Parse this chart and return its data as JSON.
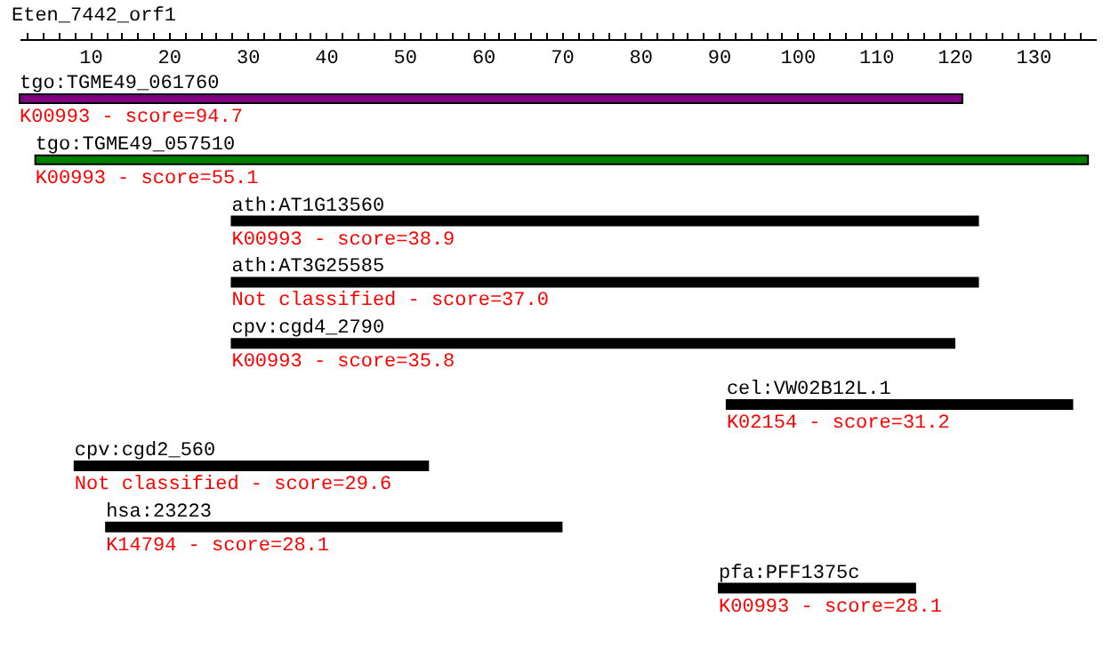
{
  "chart_data": {
    "type": "bar",
    "orientation": "horizontal",
    "title": "Eten_7442_orf1",
    "categories": [
      "tgo:TGME49_061760",
      "tgo:TGME49_057510",
      "ath:AT1G13560",
      "ath:AT3G25585",
      "cpv:cgd4_2790",
      "cel:VW02B12L.1",
      "cpv:cgd2_560",
      "hsa:23223",
      "pfa:PFF1375c"
    ],
    "base": [
      1,
      3,
      28,
      28,
      28,
      91,
      8,
      12,
      90
    ],
    "values": [
      120,
      134,
      95,
      95,
      92,
      44,
      45,
      58,
      25
    ],
    "colors": [
      "#800080",
      "#008000",
      "#000000",
      "#000000",
      "#000000",
      "#000000",
      "#000000",
      "#000000",
      "#000000"
    ],
    "xlim": [
      1,
      138
    ],
    "xticks": [
      {
        "value": 2,
        "label": null
      },
      {
        "value": 4,
        "label": null
      },
      {
        "value": 6,
        "label": null
      },
      {
        "value": 8,
        "label": null
      },
      10,
      {
        "value": 12,
        "label": null
      },
      {
        "value": 14,
        "label": null
      },
      {
        "value": 16,
        "label": null
      },
      {
        "value": 18,
        "label": null
      },
      20,
      {
        "value": 22,
        "label": null
      },
      {
        "value": 24,
        "label": null
      },
      {
        "value": 26,
        "label": null
      },
      {
        "value": 28,
        "label": null
      },
      30,
      {
        "value": 32,
        "label": null
      },
      {
        "value": 34,
        "label": null
      },
      {
        "value": 36,
        "label": null
      },
      {
        "value": 38,
        "label": null
      },
      40,
      {
        "value": 42,
        "label": null
      },
      {
        "value": 44,
        "label": null
      },
      {
        "value": 46,
        "label": null
      },
      {
        "value": 48,
        "label": null
      },
      50,
      {
        "value": 52,
        "label": null
      },
      {
        "value": 54,
        "label": null
      },
      {
        "value": 56,
        "label": null
      },
      {
        "value": 58,
        "label": null
      },
      60,
      {
        "value": 62,
        "label": null
      },
      {
        "value": 64,
        "label": null
      },
      {
        "value": 66,
        "label": null
      },
      {
        "value": 68,
        "label": null
      },
      70,
      {
        "value": 72,
        "label": null
      },
      {
        "value": 74,
        "label": null
      },
      {
        "value": 76,
        "label": null
      },
      {
        "value": 78,
        "label": null
      },
      80,
      {
        "value": 82,
        "label": null
      },
      {
        "value": 84,
        "label": null
      },
      {
        "value": 86,
        "label": null
      },
      {
        "value": 88,
        "label": null
      },
      90,
      {
        "value": 92,
        "label": null
      },
      {
        "value": 94,
        "label": null
      },
      {
        "value": 96,
        "label": null
      },
      {
        "value": 98,
        "label": null
      },
      100,
      {
        "value": 102,
        "label": null
      },
      {
        "value": 104,
        "label": null
      },
      {
        "value": 106,
        "label": null
      },
      {
        "value": 108,
        "label": null
      },
      110,
      {
        "value": 112,
        "label": null
      },
      {
        "value": 114,
        "label": null
      },
      {
        "value": 116,
        "label": null
      },
      {
        "value": 118,
        "label": null
      },
      120,
      {
        "value": 122,
        "label": null
      },
      {
        "value": 124,
        "label": null
      },
      {
        "value": 126,
        "label": null
      },
      {
        "value": 128,
        "label": null
      },
      130,
      {
        "value": 132,
        "label": null
      },
      {
        "value": 134,
        "label": null
      },
      {
        "value": 136,
        "label": null
      }
    ],
    "annotations": [
      "K00993 - score=94.7",
      "K00993 - score=55.1",
      "K00993 - score=38.9",
      "Not classified - score=37.0",
      "K00993 - score=35.8",
      "K02154 - score=31.2",
      "Not classified - score=29.6",
      "K14794 - score=28.1",
      "K00993 - score=28.1"
    ]
  }
}
